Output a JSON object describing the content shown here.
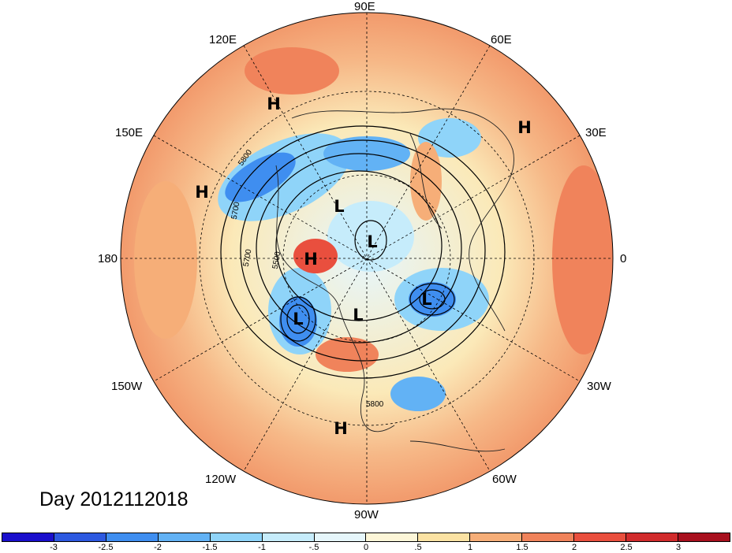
{
  "title": "Day 2012112018",
  "longitude_labels": {
    "north": "90E",
    "south": "90W",
    "west": "180",
    "east": "0",
    "upper_left": "120E",
    "upper_right": "60E",
    "left_upper": "150E",
    "right_upper": "30E",
    "left_lower": "150W",
    "right_lower": "30W",
    "lower_left": "120W",
    "lower_right": "60W"
  },
  "pressure_centers": [
    "H",
    "H",
    "H",
    "L",
    "L",
    "H",
    "L",
    "L",
    "L",
    "H"
  ],
  "contour_labels": [
    "5800",
    "5700",
    "5700",
    "5500",
    "5800"
  ],
  "colorbar": {
    "colors": [
      "#1a0fcc",
      "#2d59e0",
      "#3f8ef0",
      "#62b2f5",
      "#8fd4f9",
      "#c6ecfb",
      "#e6f6fb",
      "#fdf6d8",
      "#fbe2a3",
      "#f6ae78",
      "#f0835b",
      "#e94f3e",
      "#d12b2c",
      "#a8101e"
    ],
    "ticks": [
      "-3",
      "-2.5",
      "-2",
      "-1.5",
      "-1",
      "-.5",
      "0",
      ".5",
      "1",
      "1.5",
      "2",
      "2.5",
      "3"
    ]
  }
}
